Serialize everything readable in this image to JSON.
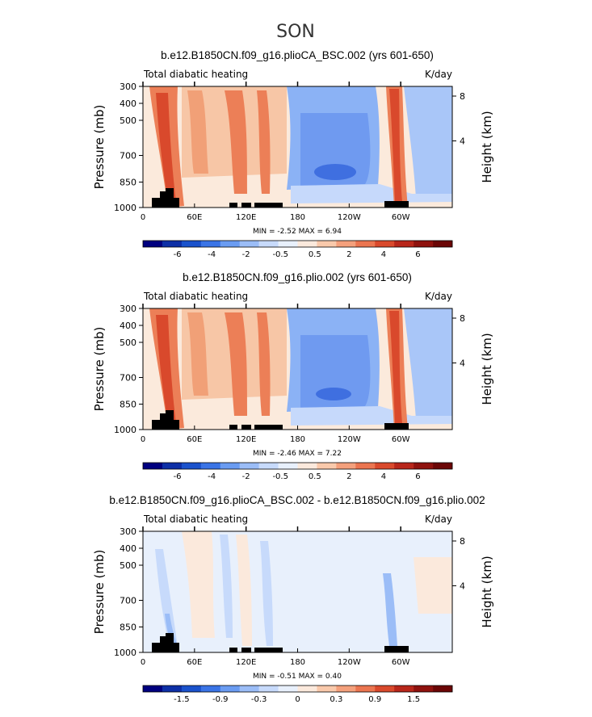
{
  "super_title": "SON",
  "chart_data": [
    {
      "type": "heatmap",
      "title": "b.e12.B1850CN.f09_g16.plioCA_BSC.002 (yrs 601-650)",
      "left_label": "Total diabatic heating",
      "right_label": "K/day",
      "ylabel": "Pressure (mb)",
      "ylabel_right": "Height (km)",
      "yticks": [
        "300",
        "400",
        "500",
        "700",
        "850",
        "1000"
      ],
      "yticks_right": [
        "8",
        "4"
      ],
      "xticks": [
        "0",
        "60E",
        "120E",
        "180",
        "120W",
        "60W"
      ],
      "stats": {
        "min": "-2.52",
        "max": "6.94"
      },
      "stats_text": "MIN =  -2.52  MAX =    6.94",
      "colorbar": {
        "labels": [
          "-6",
          "-4",
          "-2",
          "-0.5",
          "0.5",
          "2",
          "4",
          "6"
        ],
        "colors": [
          "#00007f",
          "#0d2fa6",
          "#1a52cc",
          "#3a74e6",
          "#6a9cf2",
          "#9bbdf7",
          "#c7dafb",
          "#e8f0fc",
          "#fbe9dc",
          "#f9c9ab",
          "#f4a07c",
          "#eb7550",
          "#d9492c",
          "#b8261a",
          "#8f120e",
          "#6b0606"
        ]
      }
    },
    {
      "type": "heatmap",
      "title": "b.e12.B1850CN.f09_g16.plio.002 (yrs 601-650)",
      "left_label": "Total diabatic heating",
      "right_label": "K/day",
      "ylabel": "Pressure (mb)",
      "ylabel_right": "Height (km)",
      "yticks": [
        "300",
        "400",
        "500",
        "700",
        "850",
        "1000"
      ],
      "yticks_right": [
        "8",
        "4"
      ],
      "xticks": [
        "0",
        "60E",
        "120E",
        "180",
        "120W",
        "60W"
      ],
      "stats": {
        "min": "-2.46",
        "max": "7.22"
      },
      "stats_text": "MIN =  -2.46  MAX =    7.22",
      "colorbar": {
        "labels": [
          "-6",
          "-4",
          "-2",
          "-0.5",
          "0.5",
          "2",
          "4",
          "6"
        ],
        "colors": [
          "#00007f",
          "#0d2fa6",
          "#1a52cc",
          "#3a74e6",
          "#6a9cf2",
          "#9bbdf7",
          "#c7dafb",
          "#e8f0fc",
          "#fbe9dc",
          "#f9c9ab",
          "#f4a07c",
          "#eb7550",
          "#d9492c",
          "#b8261a",
          "#8f120e",
          "#6b0606"
        ]
      }
    },
    {
      "type": "heatmap",
      "title": "b.e12.B1850CN.f09_g16.plioCA_BSC.002 - b.e12.B1850CN.f09_g16.plio.002",
      "left_label": "Total diabatic heating",
      "right_label": "K/day",
      "ylabel": "Pressure (mb)",
      "ylabel_right": "Height (km)",
      "yticks": [
        "300",
        "400",
        "500",
        "700",
        "850",
        "1000"
      ],
      "yticks_right": [
        "8",
        "4"
      ],
      "xticks": [
        "0",
        "60E",
        "120E",
        "180",
        "120W",
        "60W"
      ],
      "stats": {
        "min": "-0.51",
        "max": "0.40"
      },
      "stats_text": "MIN =  -0.51  MAX =    0.40",
      "colorbar": {
        "labels": [
          "-1.5",
          "-0.9",
          "-0.3",
          "0",
          "0.3",
          "0.9",
          "1.5"
        ],
        "colors": [
          "#00007f",
          "#0d2fa6",
          "#1a52cc",
          "#3a74e6",
          "#6a9cf2",
          "#9bbdf7",
          "#c7dafb",
          "#e8f0fc",
          "#fbe9dc",
          "#f9c9ab",
          "#f4a07c",
          "#eb7550",
          "#d9492c",
          "#b8261a",
          "#8f120e",
          "#6b0606"
        ]
      }
    }
  ]
}
